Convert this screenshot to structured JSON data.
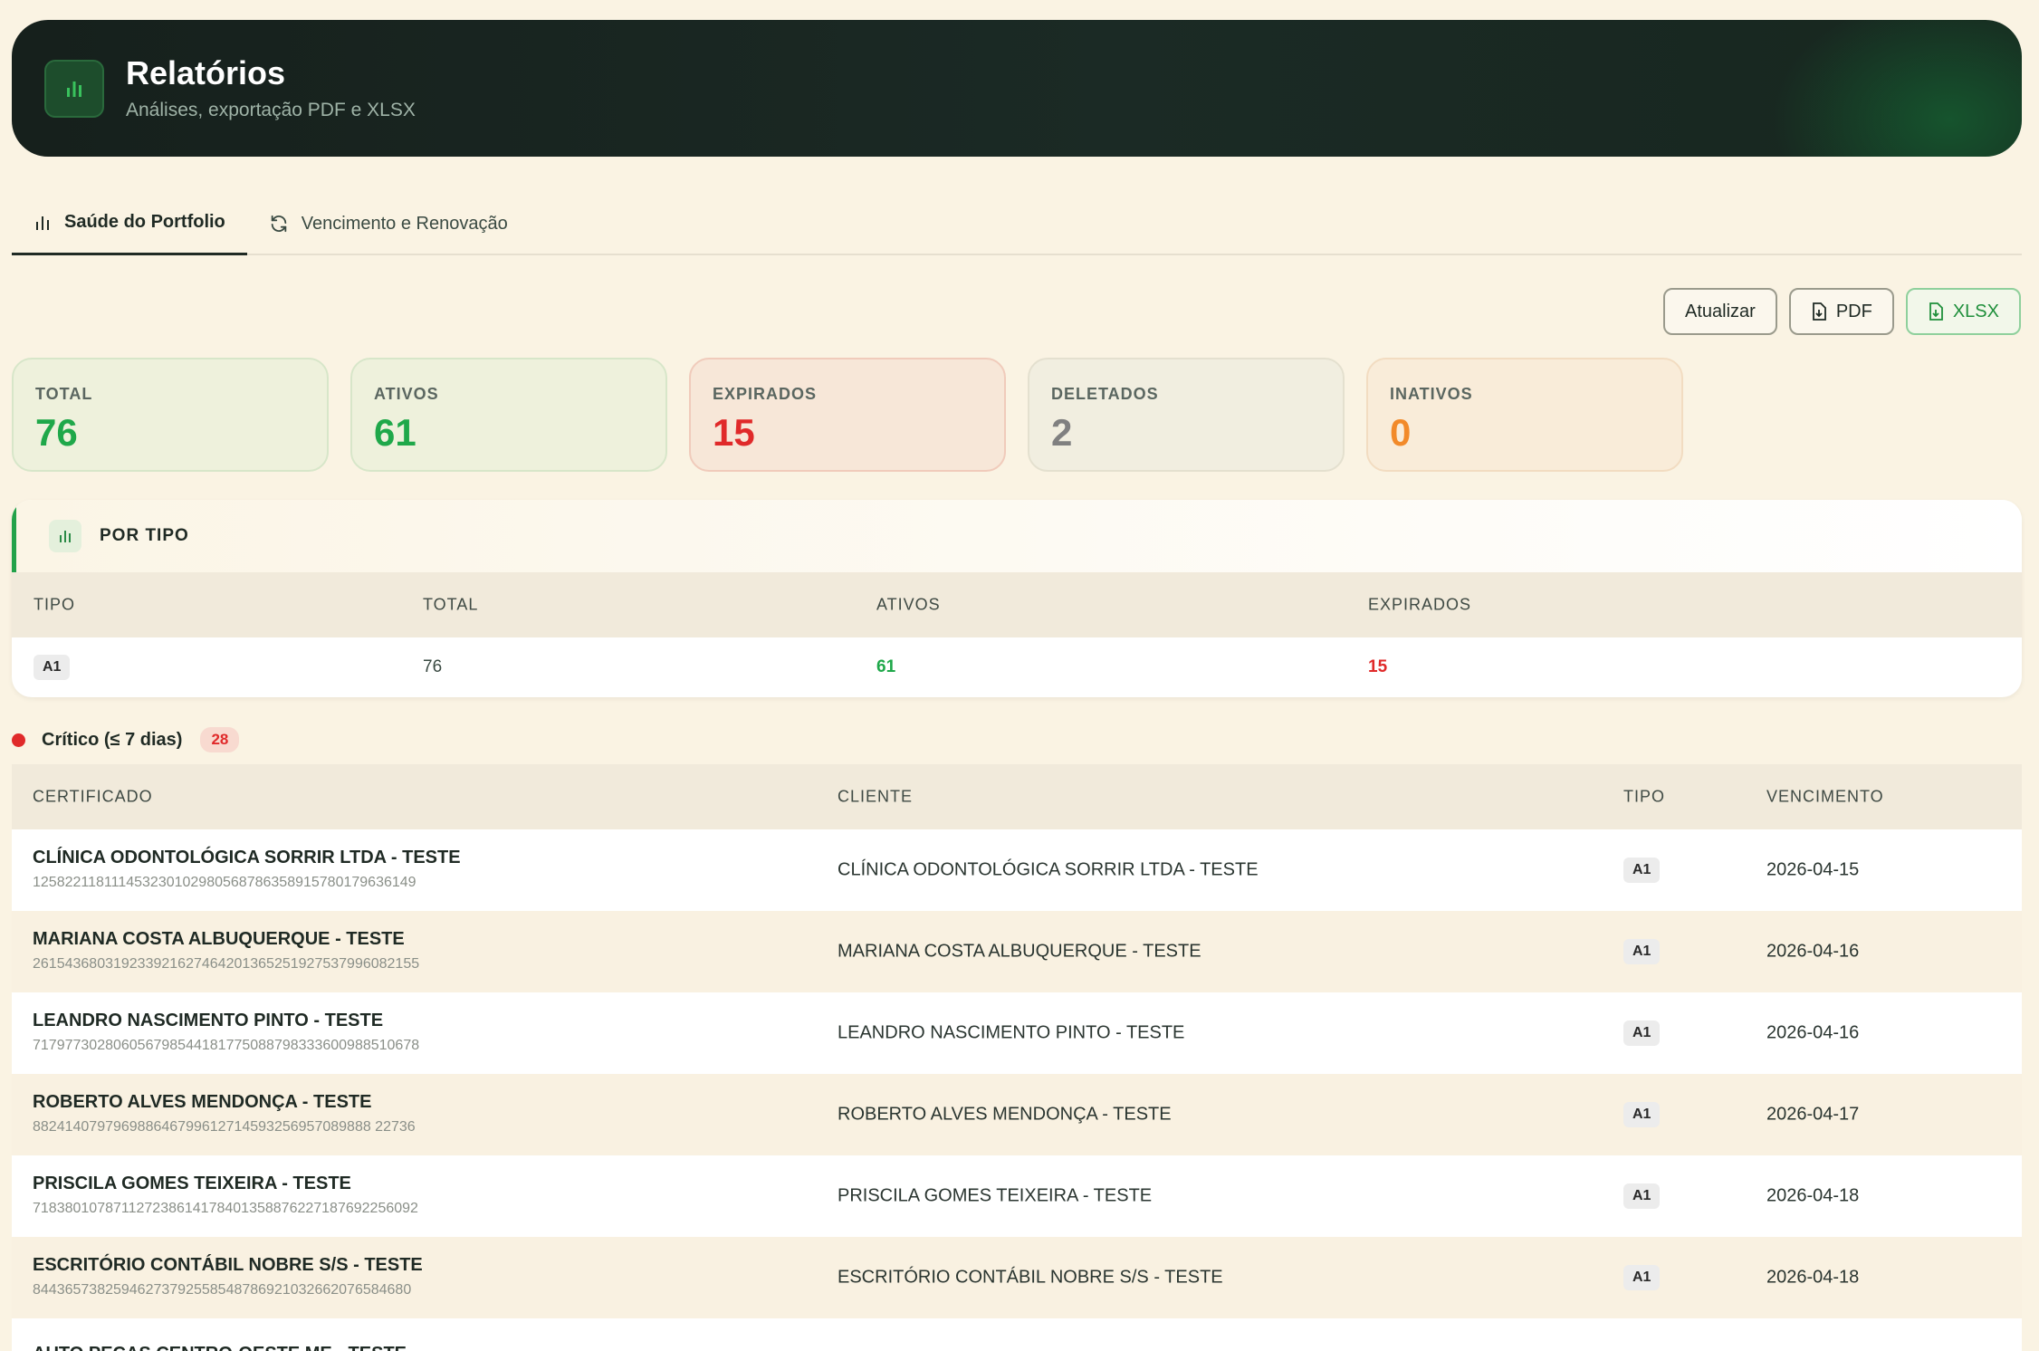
{
  "header": {
    "title": "Relatórios",
    "subtitle": "Análises, exportação PDF e XLSX",
    "icon": "bar-chart-icon"
  },
  "tabs": [
    {
      "label": "Saúde do Portfolio",
      "icon": "bar-chart-icon",
      "active": true
    },
    {
      "label": "Vencimento e Renovação",
      "icon": "refresh-icon",
      "active": false
    }
  ],
  "actions": {
    "refresh_label": "Atualizar",
    "pdf_label": "PDF",
    "xlsx_label": "XLSX"
  },
  "stats": [
    {
      "label": "TOTAL",
      "value": "76",
      "color": "#1fa84a"
    },
    {
      "label": "ATIVOS",
      "value": "61",
      "color": "#1fa84a"
    },
    {
      "label": "EXPIRADOS",
      "value": "15",
      "color": "#e02a2a"
    },
    {
      "label": "DELETADOS",
      "value": "2",
      "color": "#808080"
    },
    {
      "label": "INATIVOS",
      "value": "0",
      "color": "#f28a2a"
    }
  ],
  "por_tipo": {
    "title": "POR TIPO",
    "columns": [
      "TIPO",
      "TOTAL",
      "ATIVOS",
      "EXPIRADOS"
    ],
    "rows": [
      {
        "tipo": "A1",
        "total": "76",
        "ativos": "61",
        "expirados": "15"
      }
    ]
  },
  "critico": {
    "label": "Crítico (≤ 7 dias)",
    "count": "28",
    "columns": [
      "CERTIFICADO",
      "CLIENTE",
      "TIPO",
      "VENCIMENTO"
    ],
    "rows": [
      {
        "name": "CLÍNICA ODONTOLÓGICA SORRIR LTDA - TESTE",
        "serial": "125822118111453230102980568786358915780179636149",
        "client": "CLÍNICA ODONTOLÓGICA SORRIR LTDA - TESTE",
        "tipo": "A1",
        "venc": "2026-04-15"
      },
      {
        "name": "MARIANA COSTA ALBUQUERQUE - TESTE",
        "serial": "261543680319233921627464201365251927537996082155",
        "client": "MARIANA COSTA ALBUQUERQUE - TESTE",
        "tipo": "A1",
        "venc": "2026-04-16"
      },
      {
        "name": "LEANDRO NASCIMENTO PINTO - TESTE",
        "serial": "717977302806056798544181775088798333600988510678",
        "client": "LEANDRO NASCIMENTO PINTO - TESTE",
        "tipo": "A1",
        "venc": "2026-04-16"
      },
      {
        "name": "ROBERTO ALVES MENDONÇA - TESTE",
        "serial": "882414079796988646799612714593256957089888 22736",
        "client": "ROBERTO ALVES MENDONÇA - TESTE",
        "tipo": "A1",
        "venc": "2026-04-17"
      },
      {
        "name": "PRISCILA GOMES TEIXEIRA - TESTE",
        "serial": "718380107871127238614178401358876227187692256092",
        "client": "PRISCILA GOMES TEIXEIRA - TESTE",
        "tipo": "A1",
        "venc": "2026-04-18"
      },
      {
        "name": "ESCRITÓRIO CONTÁBIL NOBRE S/S - TESTE",
        "serial": "844365738259462737925585487869210326620765846​80",
        "client": "ESCRITÓRIO CONTÁBIL NOBRE S/S - TESTE",
        "tipo": "A1",
        "venc": "2026-04-18"
      }
    ],
    "partial_row_name": "AUTO PEÇAS CENTRO-OESTE ME - TESTE"
  }
}
